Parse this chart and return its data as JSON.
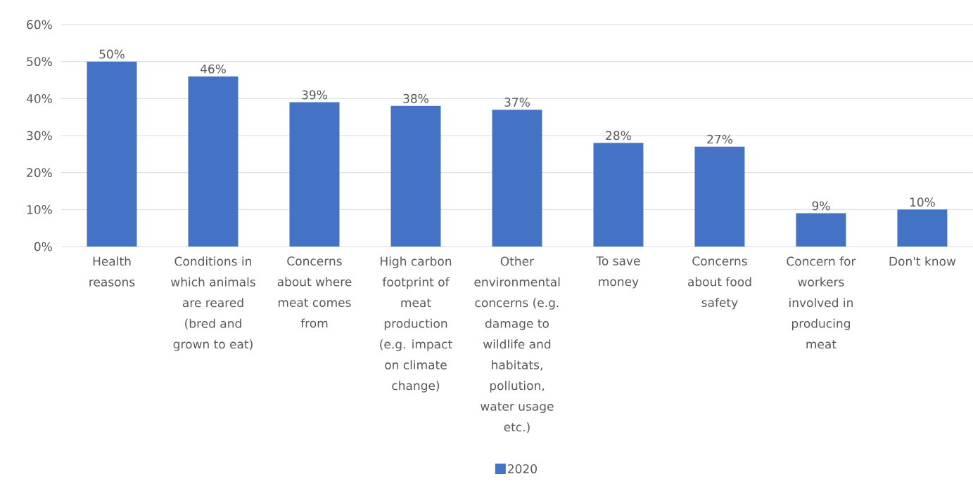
{
  "chart_data": {
    "type": "bar",
    "categories": [
      "Health reasons",
      "Conditions in which animals are reared (bred and grown to eat)",
      "Concerns about where meat comes from",
      "High carbon footprint of meat production (e.g. impact on climate change)",
      "Other environmental concerns (e.g. damage to wildlife and habitats, pollution, water usage etc.)",
      "To save money",
      "Concerns about food safety",
      "Concern for workers involved in producing meat",
      "Don't know"
    ],
    "series": [
      {
        "name": "2020",
        "color": "#4472c4",
        "values": [
          50,
          46,
          39,
          38,
          37,
          28,
          27,
          9,
          10
        ],
        "value_labels": [
          "50%",
          "46%",
          "39%",
          "38%",
          "37%",
          "28%",
          "27%",
          "9%",
          "10%"
        ]
      }
    ],
    "ylim": [
      0,
      60
    ],
    "yticks": [
      {
        "value": 0,
        "label": "0%"
      },
      {
        "value": 10,
        "label": "10%"
      },
      {
        "value": 20,
        "label": "20%"
      },
      {
        "value": 30,
        "label": "30%"
      },
      {
        "value": 40,
        "label": "40%"
      },
      {
        "value": 50,
        "label": "50%"
      },
      {
        "value": 60,
        "label": "60%"
      }
    ],
    "grid": "y",
    "legend": "bottom"
  }
}
